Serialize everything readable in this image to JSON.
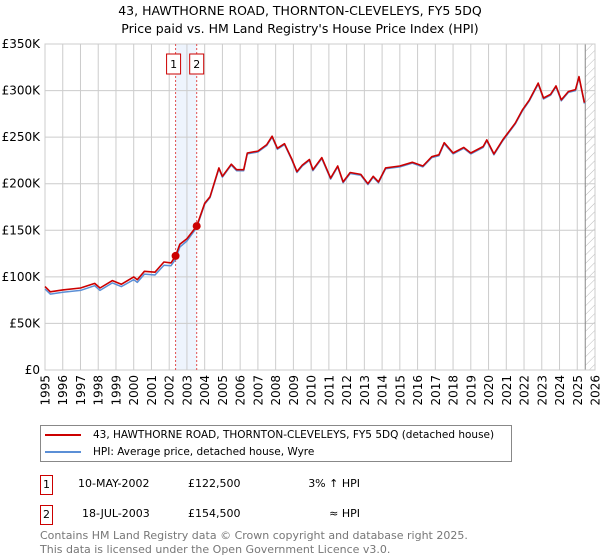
{
  "chart_data": {
    "type": "line",
    "title": "43, HAWTHORNE ROAD, THORNTON-CLEVELEYS, FY5 5DQ",
    "subtitle": "Price paid vs. HM Land Registry's House Price Index (HPI)",
    "xlabel": "",
    "ylabel": "",
    "xlim": [
      1995,
      2026
    ],
    "ylim": [
      0,
      350000
    ],
    "x_ticks": [
      "1995",
      "1996",
      "1997",
      "1998",
      "1999",
      "2000",
      "2001",
      "2002",
      "2003",
      "2004",
      "2005",
      "2006",
      "2007",
      "2008",
      "2009",
      "2010",
      "2011",
      "2012",
      "2013",
      "2014",
      "2015",
      "2016",
      "2017",
      "2018",
      "2019",
      "2020",
      "2021",
      "2022",
      "2023",
      "2024",
      "2025",
      "2026"
    ],
    "y_ticks": [
      {
        "value": 0,
        "label": "£0"
      },
      {
        "value": 50000,
        "label": "£50K"
      },
      {
        "value": 100000,
        "label": "£100K"
      },
      {
        "value": 150000,
        "label": "£150K"
      },
      {
        "value": 200000,
        "label": "£200K"
      },
      {
        "value": 250000,
        "label": "£250K"
      },
      {
        "value": 300000,
        "label": "£300K"
      },
      {
        "value": 350000,
        "label": "£350K"
      }
    ],
    "grid": true,
    "series": [
      {
        "name": "43, HAWTHORNE ROAD, THORNTON-CLEVELEYS, FY5 5DQ (detached house)",
        "color": "#cc0000",
        "x": [
          1995.0,
          1995.3,
          1996,
          1997,
          1997.8,
          1998.1,
          1998.8,
          1999.3,
          2000,
          2000.2,
          2000.6,
          2001.2,
          2001.7,
          2002.1,
          2002.36,
          2002.6,
          2003,
          2003.55,
          2004,
          2004.3,
          2004.8,
          2005.0,
          2005.5,
          2005.8,
          2006.2,
          2006.4,
          2007,
          2007.5,
          2007.8,
          2008.1,
          2008.5,
          2008.9,
          2009.2,
          2009.5,
          2009.9,
          2010.1,
          2010.6,
          2011.1,
          2011.5,
          2011.8,
          2012.2,
          2012.8,
          2013.2,
          2013.5,
          2013.8,
          2014.2,
          2015,
          2015.7,
          2016.3,
          2016.8,
          2017.2,
          2017.5,
          2018,
          2018.6,
          2019,
          2019.7,
          2019.9,
          2020.3,
          2020.8,
          2021.5,
          2021.9,
          2022.3,
          2022.8,
          2023.1,
          2023.5,
          2023.8,
          2024.1,
          2024.5,
          2024.9,
          2025.1,
          2025.4
        ],
        "y": [
          89500,
          84000,
          86000,
          88000,
          93000,
          88000,
          96000,
          92000,
          100000,
          97000,
          106000,
          105000,
          116000,
          115000,
          122500,
          135000,
          141000,
          154500,
          179000,
          186000,
          217000,
          208000,
          221000,
          215000,
          215000,
          233000,
          235000,
          242000,
          251000,
          238000,
          243000,
          227000,
          213000,
          220000,
          226000,
          215000,
          228000,
          206000,
          219000,
          202000,
          212000,
          210000,
          200000,
          208000,
          202000,
          217000,
          219000,
          223000,
          219000,
          229000,
          231000,
          244000,
          233000,
          239000,
          233000,
          240000,
          247000,
          232000,
          247000,
          265000,
          279000,
          290000,
          308000,
          292000,
          296000,
          305000,
          290000,
          299000,
          301000,
          315000,
          287000
        ]
      },
      {
        "name": "HPI: Average price, detached house, Wyre",
        "color": "#5b8fd6",
        "x": [
          1995.0,
          1995.3,
          1996,
          1997,
          1997.8,
          1998.1,
          1998.8,
          1999.3,
          2000,
          2000.2,
          2000.6,
          2001.2,
          2001.7,
          2002.1,
          2002.36,
          2002.6,
          2003,
          2003.55,
          2004,
          2004.3,
          2004.8,
          2005.0,
          2005.5,
          2005.8,
          2006.2,
          2006.4,
          2007,
          2007.5,
          2007.8,
          2008.1,
          2008.5,
          2008.9,
          2009.2,
          2009.5,
          2009.9,
          2010.1,
          2010.6,
          2011.1,
          2011.5,
          2011.8,
          2012.2,
          2012.8,
          2013.2,
          2013.5,
          2013.8,
          2014.2,
          2015,
          2015.7,
          2016.3,
          2016.8,
          2017.2,
          2017.5,
          2018,
          2018.6,
          2019,
          2019.7,
          2019.9,
          2020.3,
          2020.8,
          2021.5,
          2021.9,
          2022.3,
          2022.8,
          2023.1,
          2023.5,
          2023.8,
          2024.1,
          2024.5,
          2024.9,
          2025.1,
          2025.4
        ],
        "y": [
          87000,
          81500,
          83500,
          85500,
          90500,
          85500,
          93500,
          89500,
          97000,
          94000,
          103000,
          102000,
          112500,
          112000,
          119000,
          132000,
          138500,
          153000,
          178000,
          185000,
          216000,
          207000,
          220000,
          214000,
          214000,
          232000,
          234000,
          241000,
          250000,
          237000,
          242000,
          226000,
          212000,
          219000,
          225000,
          214000,
          227000,
          205000,
          218000,
          201000,
          211000,
          209000,
          199000,
          207000,
          201000,
          216000,
          218000,
          222000,
          218000,
          228000,
          230000,
          243000,
          232000,
          238000,
          232000,
          239000,
          246000,
          231000,
          246000,
          264000,
          278000,
          289000,
          307000,
          291000,
          295000,
          304000,
          289000,
          298000,
          300000,
          314000,
          286000
        ]
      }
    ],
    "sales": [
      {
        "id": "1",
        "x": 2002.36,
        "y": 122500
      },
      {
        "id": "2",
        "x": 2003.55,
        "y": 154500
      }
    ],
    "forecast_start": 2025.45,
    "legend_placement": "below"
  },
  "legend": {
    "property_label": "43, HAWTHORNE ROAD, THORNTON-CLEVELEYS, FY5 5DQ (detached house)",
    "hpi_label": "HPI: Average price, detached house, Wyre"
  },
  "transactions": [
    {
      "id": "1",
      "date": "10-MAY-2002",
      "price": "£122,500",
      "hpi": "3% ↑ HPI"
    },
    {
      "id": "2",
      "date": "18-JUL-2003",
      "price": "£154,500",
      "hpi": "≈ HPI"
    }
  ],
  "footer": {
    "line1": "Contains HM Land Registry data © Crown copyright and database right 2025.",
    "line2": "This data is licensed under the Open Government Licence v3.0."
  },
  "colors": {
    "property": "#cc0000",
    "hpi": "#5b8fd6",
    "grid": "#cccccc",
    "shade": "#eef4fd"
  }
}
